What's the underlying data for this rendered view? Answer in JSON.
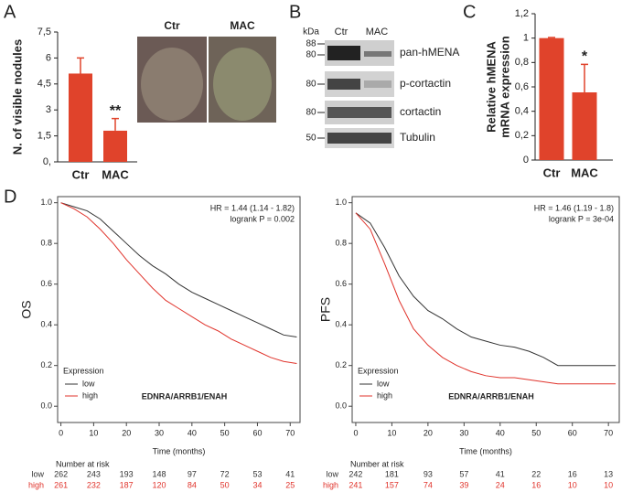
{
  "panel_labels": [
    "A",
    "B",
    "C",
    "D"
  ],
  "photos": {
    "labels": [
      "Ctr",
      "MAC"
    ]
  },
  "blot": {
    "kda_title": "kDa",
    "lanes": [
      "Ctr",
      "MAC"
    ],
    "rows": [
      {
        "name": "pan-hMENA",
        "kda": [
          "88",
          "80"
        ]
      },
      {
        "name": "p-cortactin",
        "kda": [
          "80"
        ]
      },
      {
        "name": "cortactin",
        "kda": [
          "80"
        ]
      },
      {
        "name": "Tubulin",
        "kda": [
          "50"
        ]
      }
    ]
  },
  "chart_data": [
    {
      "type": "bar",
      "ylabel": "N. of visible nodules",
      "categories": [
        "Ctr",
        "MAC"
      ],
      "values": [
        5.1,
        1.8
      ],
      "errors": [
        0.9,
        0.7
      ],
      "annotations": [
        null,
        "**"
      ],
      "color": "#e0432b",
      "ylim": [
        0,
        7.5
      ],
      "yticks": [
        {
          "value": 0,
          "label": "0,"
        },
        {
          "value": 1.5,
          "label": "1,5"
        },
        3,
        {
          "value": 4.5,
          "label": "4,5"
        },
        6,
        {
          "value": 7.5,
          "label": "7,5"
        }
      ]
    },
    {
      "type": "bar",
      "ylabel": [
        "Relative hMENA",
        "mRNA expression"
      ],
      "categories": [
        "Ctr",
        "MAC"
      ],
      "values": [
        1.0,
        0.555
      ],
      "errors": [
        0.005,
        0.23
      ],
      "annotations": [
        null,
        "*"
      ],
      "color": "#e0432b",
      "ylim": [
        0,
        1.2
      ],
      "yticks": [
        0,
        {
          "value": 0.2,
          "label": "0,2"
        },
        {
          "value": 0.4,
          "label": "0,4"
        },
        {
          "value": 0.6,
          "label": "0,6"
        },
        {
          "value": 0.8,
          "label": "0,8"
        },
        1,
        {
          "value": 1.2,
          "label": "1,2"
        }
      ]
    },
    {
      "type": "line",
      "ylabel": "OS",
      "xlabel": "Time (months)",
      "stats": [
        "HR = 1.44 (1.14 - 1.82)",
        "logrank P = 0.002"
      ],
      "gene": "EDNRA/ARRB1/ENAH",
      "legend_title": "Expression",
      "x": [
        0,
        4,
        8,
        12,
        16,
        20,
        24,
        28,
        32,
        36,
        40,
        44,
        48,
        52,
        56,
        60,
        64,
        68,
        72
      ],
      "series": [
        {
          "name": "low",
          "color": "#333333",
          "values": [
            1,
            0.98,
            0.96,
            0.92,
            0.86,
            0.8,
            0.74,
            0.69,
            0.65,
            0.6,
            0.56,
            0.53,
            0.5,
            0.47,
            0.44,
            0.41,
            0.38,
            0.35,
            0.34
          ]
        },
        {
          "name": "high",
          "color": "#e0332b",
          "values": [
            1,
            0.97,
            0.93,
            0.87,
            0.8,
            0.72,
            0.65,
            0.58,
            0.52,
            0.48,
            0.44,
            0.4,
            0.37,
            0.33,
            0.3,
            0.27,
            0.24,
            0.22,
            0.21
          ]
        }
      ],
      "xlim": [
        -1,
        73
      ],
      "ylim": [
        -0.08,
        1.03
      ],
      "xticks": [
        0,
        10,
        20,
        30,
        40,
        50,
        60,
        70
      ],
      "yticks": [
        {
          "value": 0,
          "label": "0.0"
        },
        {
          "value": 0.2,
          "label": "0.2"
        },
        {
          "value": 0.4,
          "label": "0.4"
        },
        {
          "value": 0.6,
          "label": "0.6"
        },
        {
          "value": 0.8,
          "label": "0.8"
        },
        {
          "value": 1,
          "label": "1.0"
        }
      ],
      "at_risk": {
        "title": "Number at risk",
        "rows": [
          {
            "name": "low",
            "values": [
              262,
              243,
              193,
              148,
              97,
              72,
              53,
              41
            ]
          },
          {
            "name": "high",
            "values": [
              261,
              232,
              187,
              120,
              84,
              50,
              34,
              25
            ]
          }
        ]
      }
    },
    {
      "type": "line",
      "ylabel": "PFS",
      "xlabel": "Time (months)",
      "stats": [
        "HR = 1.46 (1.19 - 1.8)",
        "logrank P = 3e-04"
      ],
      "gene": "EDNRA/ARRB1/ENAH",
      "legend_title": "Expression",
      "x": [
        0,
        4,
        8,
        12,
        16,
        20,
        24,
        28,
        32,
        36,
        40,
        44,
        48,
        52,
        56,
        60,
        64,
        68,
        72
      ],
      "series": [
        {
          "name": "low",
          "color": "#333333",
          "values": [
            0.95,
            0.9,
            0.78,
            0.64,
            0.54,
            0.47,
            0.43,
            0.38,
            0.34,
            0.32,
            0.3,
            0.29,
            0.27,
            0.24,
            0.2,
            0.2,
            0.2,
            0.2,
            0.2
          ]
        },
        {
          "name": "high",
          "color": "#e0332b",
          "values": [
            0.95,
            0.87,
            0.7,
            0.52,
            0.38,
            0.3,
            0.24,
            0.2,
            0.17,
            0.15,
            0.14,
            0.14,
            0.13,
            0.12,
            0.11,
            0.11,
            0.11,
            0.11,
            0.11
          ]
        }
      ],
      "xlim": [
        -1,
        73
      ],
      "ylim": [
        -0.08,
        1.03
      ],
      "xticks": [
        0,
        10,
        20,
        30,
        40,
        50,
        60,
        70
      ],
      "yticks": [
        {
          "value": 0,
          "label": "0.0"
        },
        {
          "value": 0.2,
          "label": "0.2"
        },
        {
          "value": 0.4,
          "label": "0.4"
        },
        {
          "value": 0.6,
          "label": "0.6"
        },
        {
          "value": 0.8,
          "label": "0.8"
        },
        {
          "value": 1,
          "label": "1.0"
        }
      ],
      "at_risk": {
        "title": "Number at risk",
        "rows": [
          {
            "name": "low",
            "values": [
              242,
              181,
              93,
              57,
              41,
              22,
              16,
              13
            ]
          },
          {
            "name": "high",
            "values": [
              241,
              157,
              74,
              39,
              24,
              16,
              10,
              10
            ]
          }
        ]
      }
    }
  ]
}
